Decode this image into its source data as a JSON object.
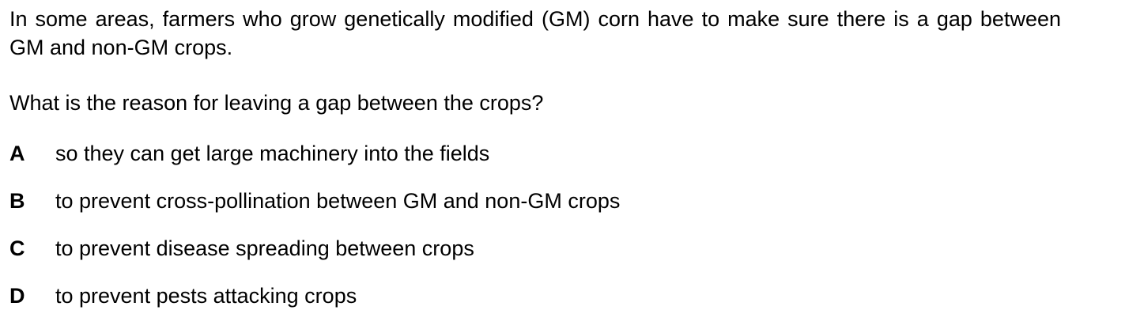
{
  "question": {
    "stem": "In some areas, farmers who grow genetically modified (GM) corn have to make sure there is a gap between GM and non-GM crops.",
    "prompt": "What is the reason for leaving a gap between the crops?",
    "options": [
      {
        "letter": "A",
        "text": "so they can get large machinery into the fields"
      },
      {
        "letter": "B",
        "text": "to prevent cross-pollination between GM and non-GM crops"
      },
      {
        "letter": "C",
        "text": "to prevent disease spreading between crops"
      },
      {
        "letter": "D",
        "text": "to prevent pests attacking crops"
      }
    ]
  }
}
